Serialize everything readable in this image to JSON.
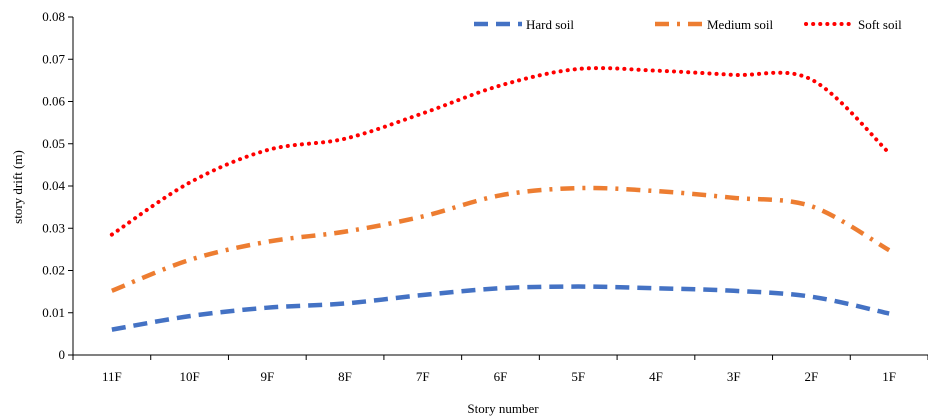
{
  "chart_data": {
    "type": "line",
    "xlabel": "Story number",
    "ylabel": "story drift (m)",
    "categories": [
      "11F",
      "10F",
      "9F",
      "8F",
      "7F",
      "6F",
      "5F",
      "4F",
      "3F",
      "2F",
      "1F"
    ],
    "ylim": [
      0,
      0.08
    ],
    "yticks": [
      "0",
      "0.01",
      "0.02",
      "0.03",
      "0.04",
      "0.05",
      "0.06",
      "0.07",
      "0.08"
    ],
    "grid": false,
    "legend_position": "top-right",
    "series": [
      {
        "name": "Hard soil",
        "color": "#4472C4",
        "style": "dashed",
        "values": [
          0.006,
          0.0092,
          0.0112,
          0.0122,
          0.0142,
          0.0158,
          0.0162,
          0.0158,
          0.0152,
          0.0138,
          0.0098
        ]
      },
      {
        "name": "Medium soil",
        "color": "#ED7D31",
        "style": "dash-dot",
        "values": [
          0.0152,
          0.0225,
          0.0268,
          0.0292,
          0.0328,
          0.0378,
          0.0395,
          0.0388,
          0.0372,
          0.0352,
          0.0248
        ]
      },
      {
        "name": "Soft soil",
        "color": "#FF0000",
        "style": "dotted",
        "values": [
          0.0285,
          0.0408,
          0.0485,
          0.0512,
          0.0572,
          0.0638,
          0.0677,
          0.0673,
          0.0663,
          0.0652,
          0.0478
        ]
      }
    ]
  }
}
